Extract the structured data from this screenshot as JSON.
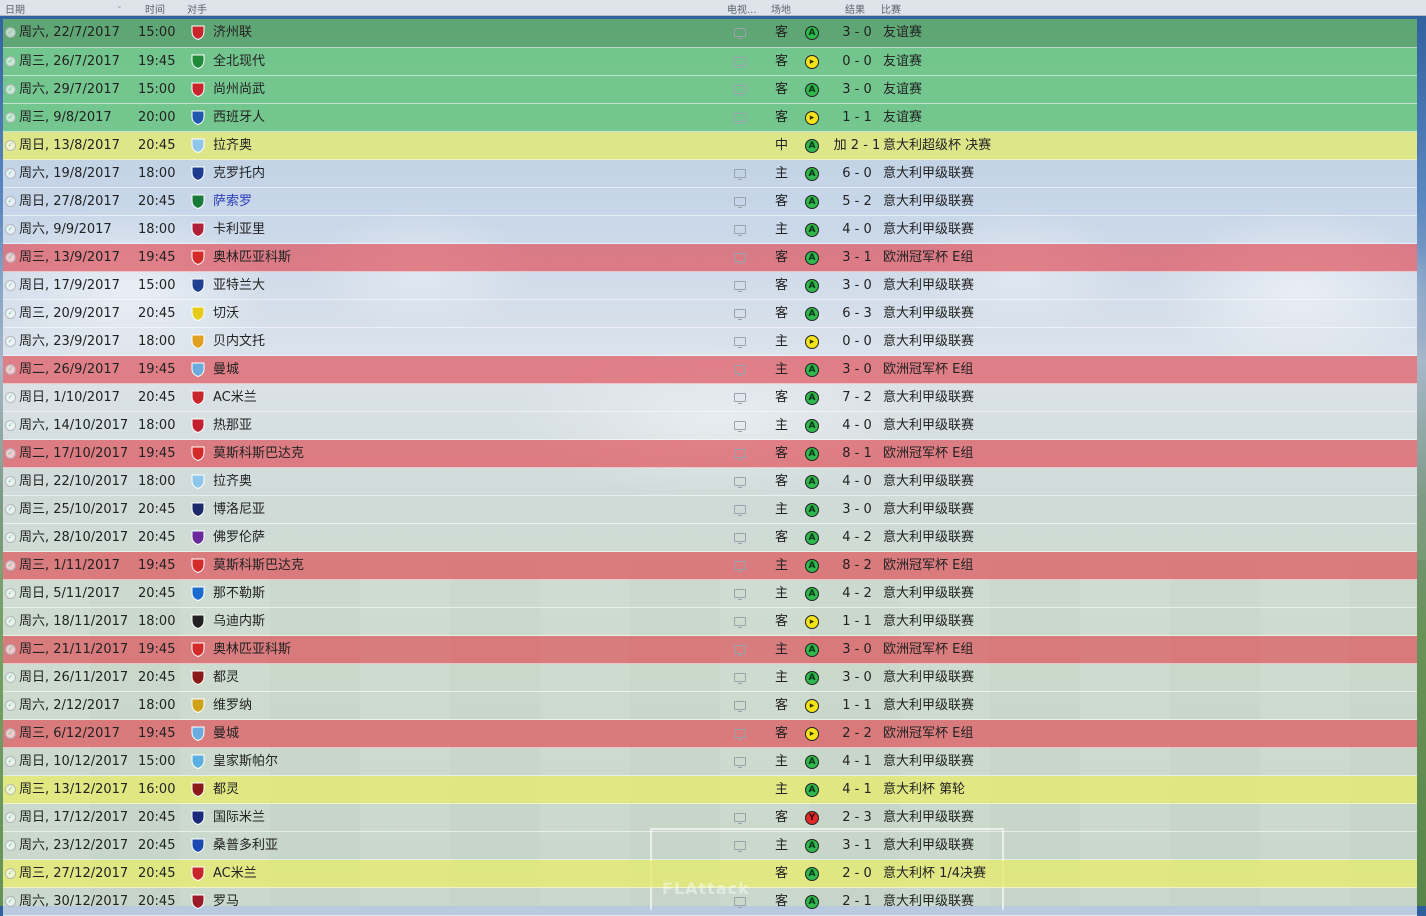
{
  "header": {
    "date": "日期",
    "time": "时间",
    "opponent": "对手",
    "tv": "电视...",
    "venue": "场地",
    "result": "结果",
    "competition": "比赛"
  },
  "matches": [
    {
      "date": "周六, 22/7/2017",
      "time": "15:00",
      "opponent": "济州联",
      "venue": "客",
      "outcome": "win",
      "score": "3 - 0",
      "competition": "友谊赛",
      "row": "green-dark",
      "badge": "#c8262b"
    },
    {
      "date": "周三, 26/7/2017",
      "time": "19:45",
      "opponent": "全北现代",
      "venue": "客",
      "outcome": "draw",
      "score": "0 - 0",
      "competition": "友谊赛",
      "row": "green",
      "badge": "#1f8a3a"
    },
    {
      "date": "周六, 29/7/2017",
      "time": "15:00",
      "opponent": "尚州尚武",
      "venue": "客",
      "outcome": "win",
      "score": "3 - 0",
      "competition": "友谊赛",
      "row": "green",
      "badge": "#c8262b"
    },
    {
      "date": "周三, 9/8/2017",
      "time": "20:00",
      "opponent": "西班牙人",
      "venue": "客",
      "outcome": "draw",
      "score": "1 - 1",
      "competition": "友谊赛",
      "row": "green",
      "badge": "#2058b0"
    },
    {
      "date": "周日, 13/8/2017",
      "time": "20:45",
      "opponent": "拉齐奥",
      "venue": "中",
      "outcome": "win",
      "score": "加 2 - 1",
      "competition": "意大利超级杯 决赛",
      "row": "yellow",
      "badge": "#8fc7ea"
    },
    {
      "date": "周六, 19/8/2017",
      "time": "18:00",
      "opponent": "克罗托内",
      "venue": "主",
      "outcome": "win",
      "score": "6 - 0",
      "competition": "意大利甲级联赛",
      "row": "plain",
      "badge": "#1d3b8f"
    },
    {
      "date": "周日, 27/8/2017",
      "time": "20:45",
      "opponent": "萨索罗",
      "venue": "客",
      "outcome": "win",
      "score": "5 - 2",
      "competition": "意大利甲级联赛",
      "row": "plain",
      "badge": "#1a7a3a",
      "link": true
    },
    {
      "date": "周六, 9/9/2017",
      "time": "18:00",
      "opponent": "卡利亚里",
      "venue": "主",
      "outcome": "win",
      "score": "4 - 0",
      "competition": "意大利甲级联赛",
      "row": "plain",
      "badge": "#b0203a"
    },
    {
      "date": "周三, 13/9/2017",
      "time": "19:45",
      "opponent": "奥林匹亚科斯",
      "venue": "客",
      "outcome": "win",
      "score": "3 - 1",
      "competition": "欧洲冠军杯 E组",
      "row": "red",
      "badge": "#d42a2a"
    },
    {
      "date": "周日, 17/9/2017",
      "time": "15:00",
      "opponent": "亚特兰大",
      "venue": "客",
      "outcome": "win",
      "score": "3 - 0",
      "competition": "意大利甲级联赛",
      "row": "plain",
      "badge": "#1f3f90"
    },
    {
      "date": "周三, 20/9/2017",
      "time": "20:45",
      "opponent": "切沃",
      "venue": "客",
      "outcome": "win",
      "score": "6 - 3",
      "competition": "意大利甲级联赛",
      "row": "plain",
      "badge": "#e6cc1a"
    },
    {
      "date": "周六, 23/9/2017",
      "time": "18:00",
      "opponent": "贝内文托",
      "venue": "主",
      "outcome": "draw",
      "score": "0 - 0",
      "competition": "意大利甲级联赛",
      "row": "plain",
      "badge": "#e0a020"
    },
    {
      "date": "周二, 26/9/2017",
      "time": "19:45",
      "opponent": "曼城",
      "venue": "主",
      "outcome": "win",
      "score": "3 - 0",
      "competition": "欧洲冠军杯 E组",
      "row": "red",
      "badge": "#6cabdd"
    },
    {
      "date": "周日, 1/10/2017",
      "time": "20:45",
      "opponent": "AC米兰",
      "venue": "客",
      "outcome": "win",
      "score": "7 - 2",
      "competition": "意大利甲级联赛",
      "row": "plain",
      "badge": "#c8262b"
    },
    {
      "date": "周六, 14/10/2017",
      "time": "18:00",
      "opponent": "热那亚",
      "venue": "主",
      "outcome": "win",
      "score": "4 - 0",
      "competition": "意大利甲级联赛",
      "row": "plain",
      "badge": "#c02030"
    },
    {
      "date": "周二, 17/10/2017",
      "time": "19:45",
      "opponent": "莫斯科斯巴达克",
      "venue": "客",
      "outcome": "win",
      "score": "8 - 1",
      "competition": "欧洲冠军杯 E组",
      "row": "red",
      "badge": "#d42a2a"
    },
    {
      "date": "周日, 22/10/2017",
      "time": "18:00",
      "opponent": "拉齐奥",
      "venue": "客",
      "outcome": "win",
      "score": "4 - 0",
      "competition": "意大利甲级联赛",
      "row": "plain",
      "badge": "#8fc7ea"
    },
    {
      "date": "周三, 25/10/2017",
      "time": "20:45",
      "opponent": "博洛尼亚",
      "venue": "主",
      "outcome": "win",
      "score": "3 - 0",
      "competition": "意大利甲级联赛",
      "row": "plain",
      "badge": "#1a2a6a"
    },
    {
      "date": "周六, 28/10/2017",
      "time": "20:45",
      "opponent": "佛罗伦萨",
      "venue": "客",
      "outcome": "win",
      "score": "4 - 2",
      "competition": "意大利甲级联赛",
      "row": "plain",
      "badge": "#6a2a9a"
    },
    {
      "date": "周三, 1/11/2017",
      "time": "19:45",
      "opponent": "莫斯科斯巴达克",
      "venue": "主",
      "outcome": "win",
      "score": "8 - 2",
      "competition": "欧洲冠军杯 E组",
      "row": "red",
      "badge": "#d42a2a"
    },
    {
      "date": "周日, 5/11/2017",
      "time": "20:45",
      "opponent": "那不勒斯",
      "venue": "主",
      "outcome": "win",
      "score": "4 - 2",
      "competition": "意大利甲级联赛",
      "row": "plain",
      "badge": "#1a6acf"
    },
    {
      "date": "周六, 18/11/2017",
      "time": "18:00",
      "opponent": "乌迪内斯",
      "venue": "客",
      "outcome": "draw",
      "score": "1 - 1",
      "competition": "意大利甲级联赛",
      "row": "plain",
      "badge": "#222222"
    },
    {
      "date": "周二, 21/11/2017",
      "time": "19:45",
      "opponent": "奥林匹亚科斯",
      "venue": "主",
      "outcome": "win",
      "score": "3 - 0",
      "competition": "欧洲冠军杯 E组",
      "row": "red",
      "badge": "#d42a2a"
    },
    {
      "date": "周日, 26/11/2017",
      "time": "20:45",
      "opponent": "都灵",
      "venue": "主",
      "outcome": "win",
      "score": "3 - 0",
      "competition": "意大利甲级联赛",
      "row": "plain",
      "badge": "#8a1a1a"
    },
    {
      "date": "周六, 2/12/2017",
      "time": "18:00",
      "opponent": "维罗纳",
      "venue": "客",
      "outcome": "draw",
      "score": "1 - 1",
      "competition": "意大利甲级联赛",
      "row": "plain",
      "badge": "#d0a21a"
    },
    {
      "date": "周三, 6/12/2017",
      "time": "19:45",
      "opponent": "曼城",
      "venue": "客",
      "outcome": "draw",
      "score": "2 - 2",
      "competition": "欧洲冠军杯 E组",
      "row": "red",
      "badge": "#6cabdd"
    },
    {
      "date": "周日, 10/12/2017",
      "time": "15:00",
      "opponent": "皇家斯帕尔",
      "venue": "主",
      "outcome": "win",
      "score": "4 - 1",
      "competition": "意大利甲级联赛",
      "row": "plain",
      "badge": "#5ab0e0"
    },
    {
      "date": "周三, 13/12/2017",
      "time": "16:00",
      "opponent": "都灵",
      "venue": "主",
      "outcome": "win",
      "score": "4 - 1",
      "competition": "意大利杯 第轮",
      "row": "yellow",
      "badge": "#8a1a1a"
    },
    {
      "date": "周日, 17/12/2017",
      "time": "20:45",
      "opponent": "国际米兰",
      "venue": "客",
      "outcome": "loss",
      "score": "2 - 3",
      "competition": "意大利甲级联赛",
      "row": "plain",
      "badge": "#1a2a7a"
    },
    {
      "date": "周六, 23/12/2017",
      "time": "20:45",
      "opponent": "桑普多利亚",
      "venue": "主",
      "outcome": "win",
      "score": "3 - 1",
      "competition": "意大利甲级联赛",
      "row": "plain",
      "badge": "#1a4ab0"
    },
    {
      "date": "周三, 27/12/2017",
      "time": "20:45",
      "opponent": "AC米兰",
      "venue": "客",
      "outcome": "win",
      "score": "2 - 0",
      "competition": "意大利杯 1/4决赛",
      "row": "yellow",
      "badge": "#c8262b"
    },
    {
      "date": "周六, 30/12/2017",
      "time": "20:45",
      "opponent": "罗马",
      "venue": "客",
      "outcome": "win",
      "score": "2 - 1",
      "competition": "意大利甲级联赛",
      "row": "plain",
      "badge": "#9a1a2a"
    }
  ],
  "outcome_letters": {
    "win": "A",
    "draw": "▸",
    "loss": "Y"
  },
  "watermark": "FLAttack"
}
